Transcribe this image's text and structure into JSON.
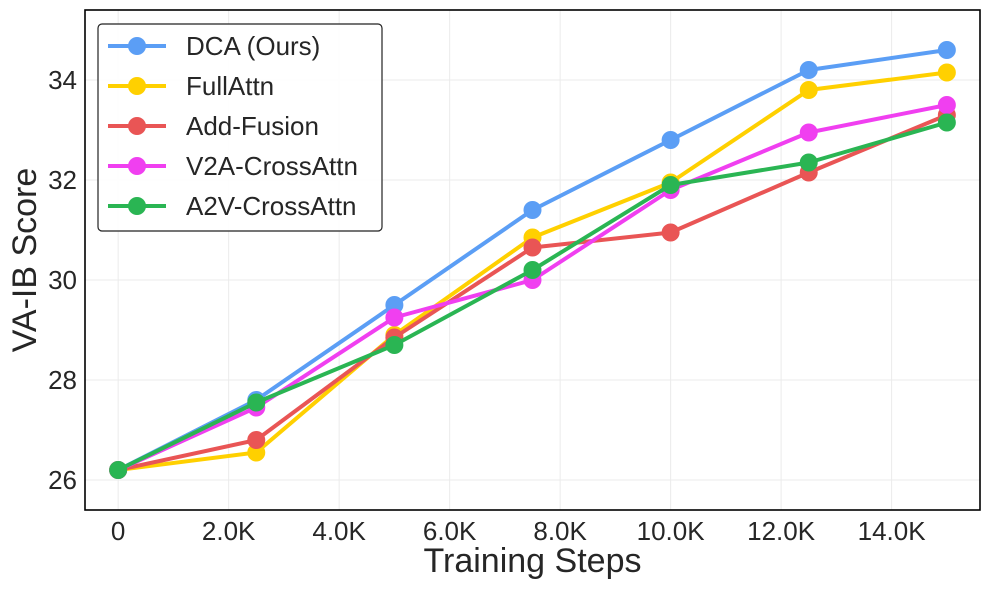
{
  "chart_data": {
    "type": "line",
    "title": "",
    "xlabel": "Training Steps",
    "ylabel": "VA-IB Score",
    "xlim": [
      -600,
      15600
    ],
    "ylim": [
      25.4,
      35.4
    ],
    "grid": true,
    "legend_position": "top-left",
    "x": [
      0,
      2500,
      5000,
      7500,
      10000,
      12500,
      15000
    ],
    "xticks": [
      0,
      2000,
      4000,
      6000,
      8000,
      10000,
      12000,
      14000
    ],
    "xtick_labels": [
      "0",
      "2.0K",
      "4.0K",
      "6.0K",
      "8.0K",
      "10.0K",
      "12.0K",
      "14.0K"
    ],
    "yticks": [
      26,
      28,
      30,
      32,
      34
    ],
    "ytick_labels": [
      "26",
      "28",
      "30",
      "32",
      "34"
    ],
    "series": [
      {
        "name": "DCA (Ours)",
        "color": "#5b9ef5",
        "values": [
          26.2,
          27.6,
          29.5,
          31.4,
          32.8,
          34.2,
          34.6
        ]
      },
      {
        "name": "FullAttn",
        "color": "#ffd000",
        "values": [
          26.2,
          26.55,
          28.9,
          30.85,
          31.95,
          33.8,
          34.15
        ]
      },
      {
        "name": "Add-Fusion",
        "color": "#e95555",
        "values": [
          26.2,
          26.8,
          28.85,
          30.65,
          30.95,
          32.15,
          33.3
        ]
      },
      {
        "name": "V2A-CrossAttn",
        "color": "#f03ff0",
        "values": [
          26.2,
          27.45,
          29.25,
          30.0,
          31.8,
          32.95,
          33.5
        ]
      },
      {
        "name": "A2V-CrossAttn",
        "color": "#2ab553",
        "values": [
          26.2,
          27.55,
          28.7,
          30.2,
          31.9,
          32.35,
          33.15
        ]
      }
    ]
  }
}
